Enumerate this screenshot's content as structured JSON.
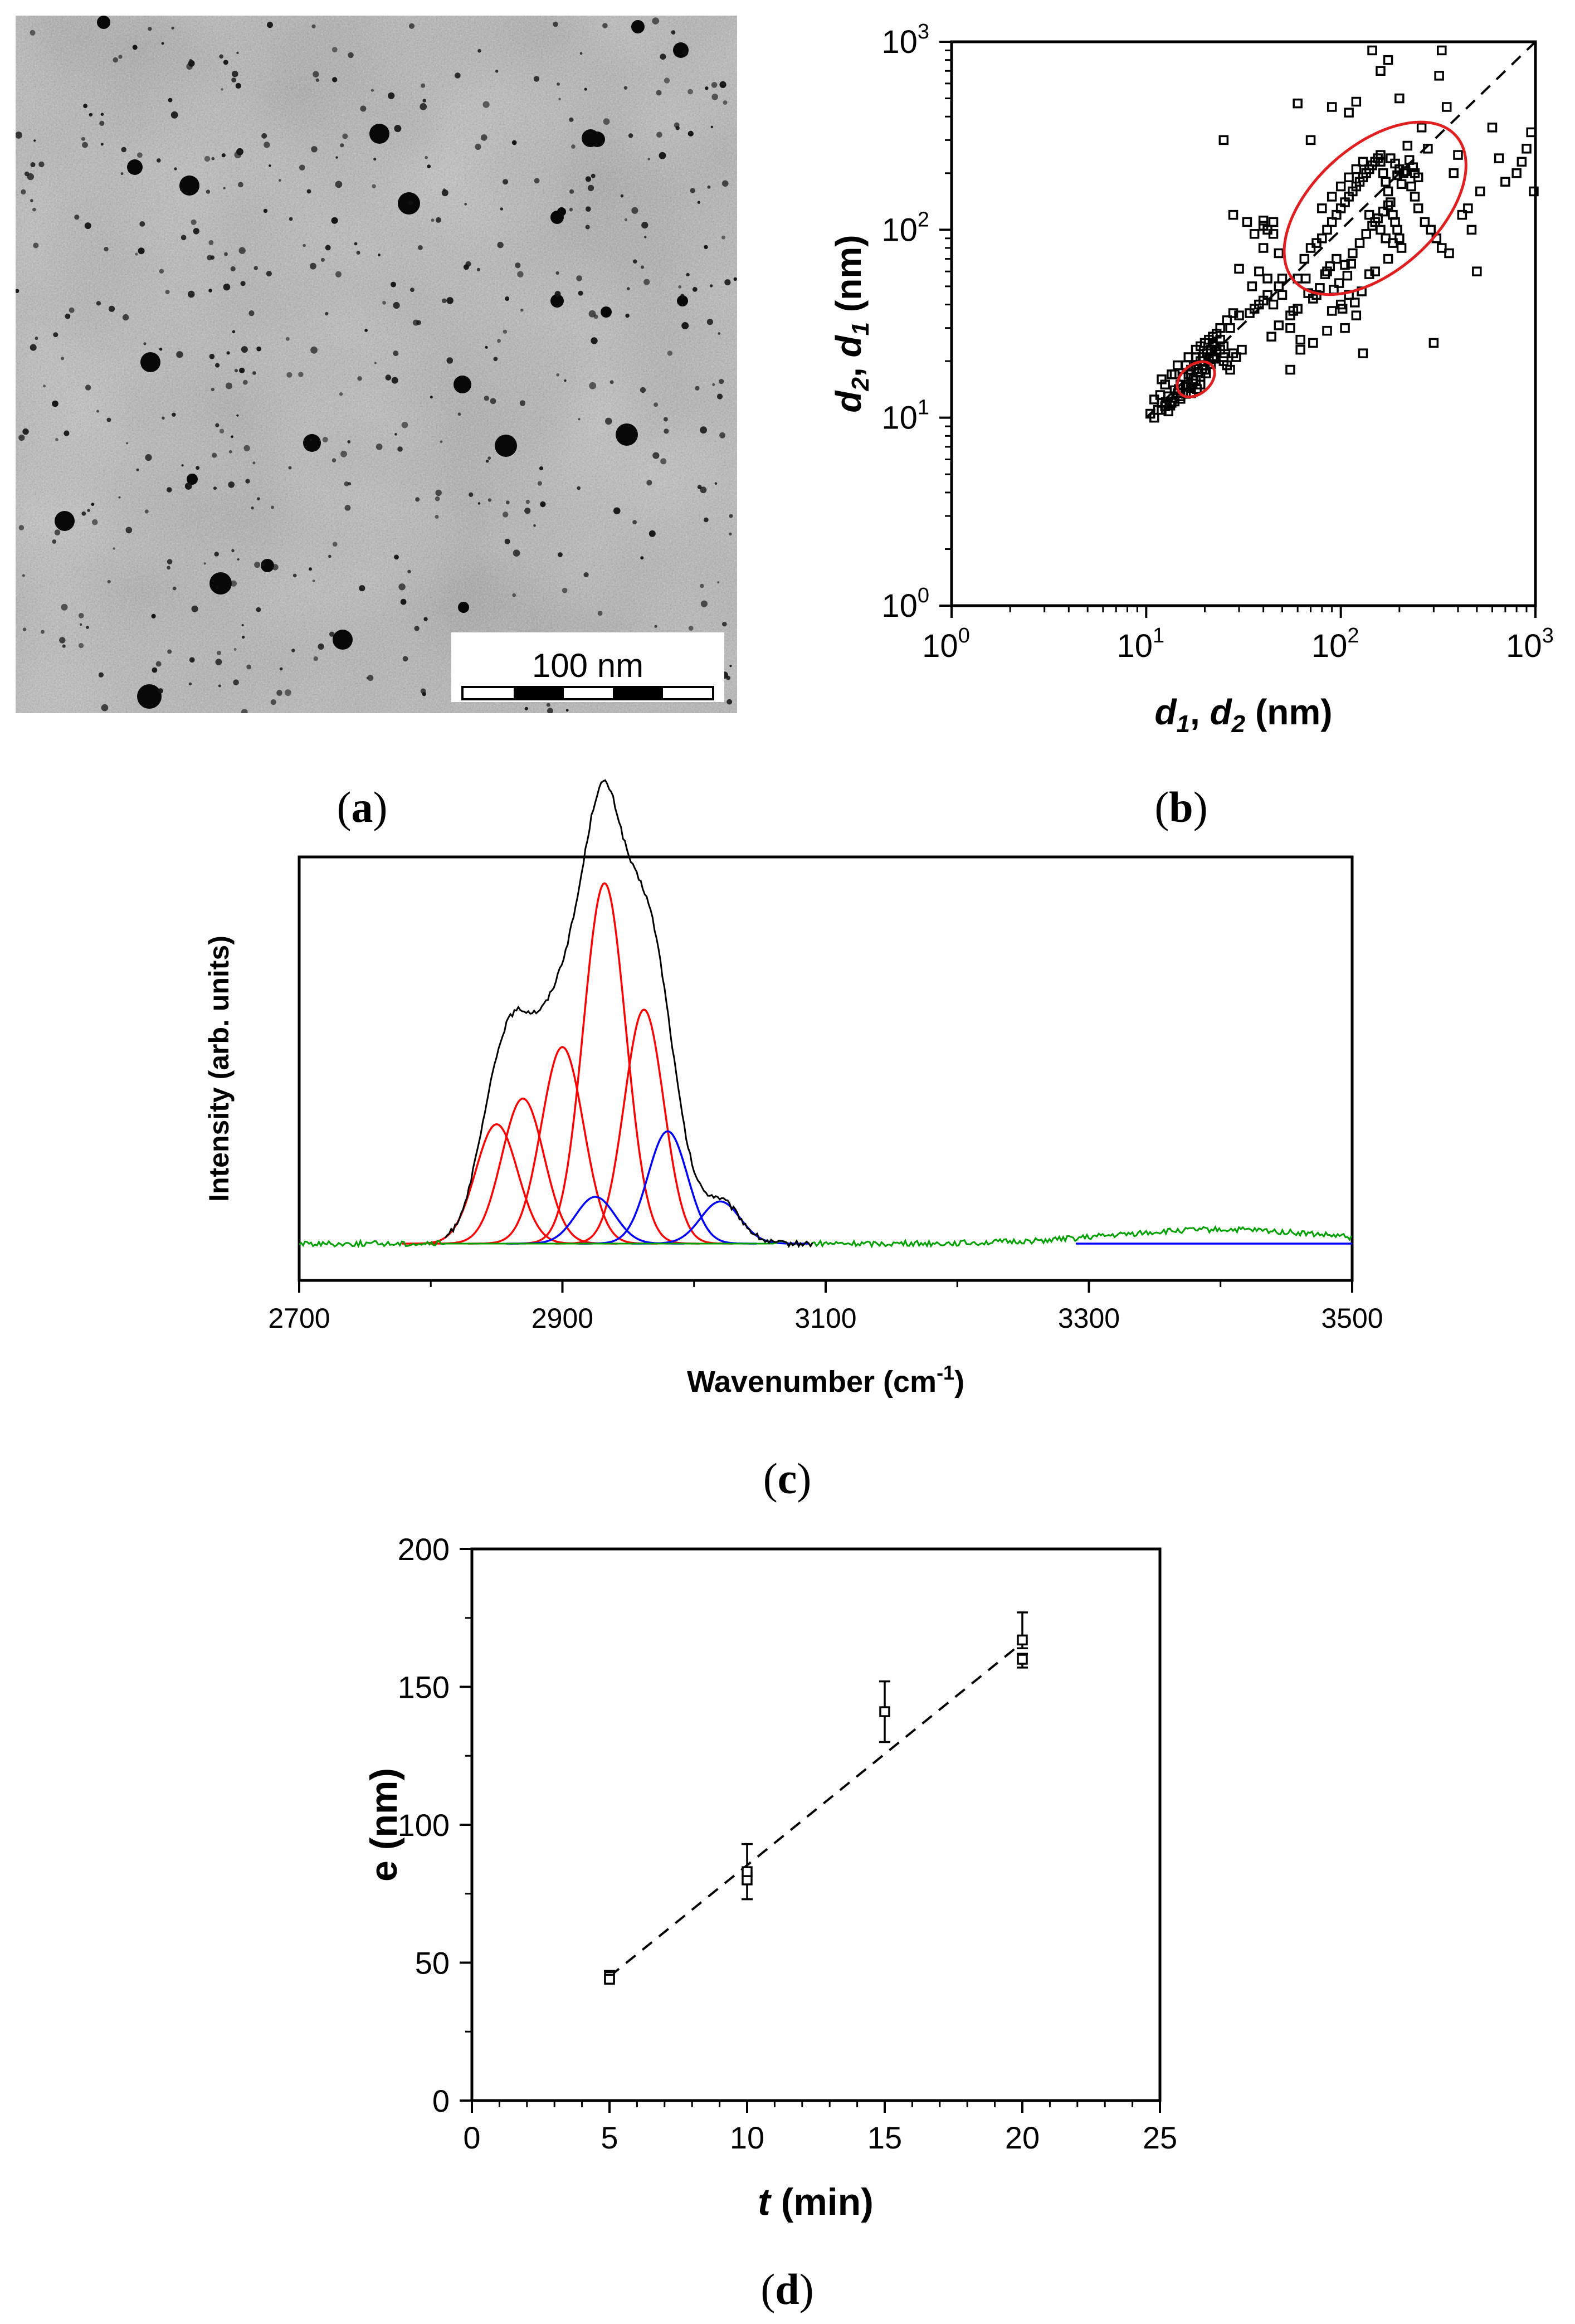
{
  "panels": {
    "a": {
      "label_open": "(",
      "label_letter": "a",
      "label_close": ")"
    },
    "b": {
      "label_open": "(",
      "label_letter": "b",
      "label_close": ")"
    },
    "c": {
      "label_open": "(",
      "label_letter": "c",
      "label_close": ")"
    },
    "d": {
      "label_open": "(",
      "label_letter": "d",
      "label_close": ")"
    }
  },
  "micrograph": {
    "scale_bar_text": "100 nm"
  },
  "chart_data": [
    {
      "id": "b",
      "type": "scatter",
      "scale": "log-log",
      "xlabel_parts": [
        "d",
        "1",
        ", ",
        "d",
        "2",
        " (nm)"
      ],
      "ylabel_parts": [
        "d",
        "2",
        ", ",
        "d",
        "1",
        " (nm)"
      ],
      "xlim": [
        1,
        1000
      ],
      "ylim": [
        1,
        1000
      ],
      "ticks": [
        1,
        10,
        100,
        1000
      ],
      "tick_labels": [
        [
          "10",
          "0"
        ],
        [
          "10",
          "1"
        ],
        [
          "10",
          "2"
        ],
        [
          "10",
          "3"
        ]
      ],
      "reference_line": "y = x (dashed)",
      "ellipses": [
        {
          "center": [
            18,
            16
          ],
          "color": "#e02020"
        },
        {
          "center": [
            150,
            130
          ],
          "color": "#e02020"
        }
      ],
      "points": [
        [
          10.5,
          10.5
        ],
        [
          11,
          10
        ],
        [
          11.5,
          11
        ],
        [
          12,
          12
        ],
        [
          12.5,
          11.5
        ],
        [
          13,
          13
        ],
        [
          13.5,
          12
        ],
        [
          14,
          14
        ],
        [
          14.5,
          13.5
        ],
        [
          15,
          15
        ],
        [
          11.8,
          13.2
        ],
        [
          12.6,
          12.1
        ],
        [
          13.3,
          11.6
        ],
        [
          14.7,
          14.2
        ],
        [
          15.5,
          16.5
        ],
        [
          16,
          15
        ],
        [
          16.5,
          17
        ],
        [
          17,
          18
        ],
        [
          17.5,
          16
        ],
        [
          18,
          19
        ],
        [
          18.5,
          17.5
        ],
        [
          19,
          20
        ],
        [
          19.5,
          21
        ],
        [
          20,
          19
        ],
        [
          20.5,
          22
        ],
        [
          21,
          20.5
        ],
        [
          21.5,
          23
        ],
        [
          22,
          21
        ],
        [
          22.5,
          24
        ],
        [
          23,
          22.5
        ],
        [
          16.2,
          14.6
        ],
        [
          17.3,
          15.2
        ],
        [
          18.2,
          14.2
        ],
        [
          19.4,
          18.2
        ],
        [
          20.3,
          17.2
        ],
        [
          21.5,
          19.3
        ],
        [
          22.3,
          20.6
        ],
        [
          24,
          23
        ],
        [
          25,
          24
        ],
        [
          25,
          21
        ],
        [
          12.5,
          15
        ],
        [
          14,
          17
        ],
        [
          15,
          13
        ],
        [
          17,
          13.5
        ],
        [
          19,
          15
        ],
        [
          22,
          25
        ],
        [
          24,
          26
        ],
        [
          27,
          30
        ],
        [
          28,
          22
        ],
        [
          30,
          35
        ],
        [
          34,
          36
        ],
        [
          36,
          38
        ],
        [
          38,
          40
        ],
        [
          40,
          42
        ],
        [
          42,
          45
        ],
        [
          45,
          40
        ],
        [
          48,
          50
        ],
        [
          50,
          55
        ],
        [
          55,
          35
        ],
        [
          60,
          38
        ],
        [
          35,
          50
        ],
        [
          38,
          60
        ],
        [
          40,
          80
        ],
        [
          42,
          100
        ],
        [
          45,
          110
        ],
        [
          40,
          112
        ],
        [
          45,
          95
        ],
        [
          40,
          105
        ],
        [
          48,
          75
        ],
        [
          55,
          30
        ],
        [
          60,
          55
        ],
        [
          65,
          70
        ],
        [
          70,
          80
        ],
        [
          75,
          85
        ],
        [
          80,
          90
        ],
        [
          85,
          100
        ],
        [
          90,
          110
        ],
        [
          95,
          120
        ],
        [
          100,
          130
        ],
        [
          105,
          140
        ],
        [
          110,
          150
        ],
        [
          115,
          160
        ],
        [
          120,
          170
        ],
        [
          125,
          180
        ],
        [
          130,
          190
        ],
        [
          135,
          200
        ],
        [
          140,
          210
        ],
        [
          145,
          220
        ],
        [
          150,
          230
        ],
        [
          155,
          240
        ],
        [
          160,
          250
        ],
        [
          165,
          200
        ],
        [
          170,
          180
        ],
        [
          175,
          160
        ],
        [
          180,
          140
        ],
        [
          185,
          120
        ],
        [
          190,
          110
        ],
        [
          195,
          100
        ],
        [
          200,
          90
        ],
        [
          205,
          80
        ],
        [
          80,
          130
        ],
        [
          90,
          150
        ],
        [
          100,
          170
        ],
        [
          110,
          190
        ],
        [
          120,
          210
        ],
        [
          130,
          230
        ],
        [
          140,
          120
        ],
        [
          150,
          110
        ],
        [
          160,
          100
        ],
        [
          170,
          90
        ],
        [
          85,
          60
        ],
        [
          95,
          70
        ],
        [
          105,
          65
        ],
        [
          115,
          75
        ],
        [
          125,
          85
        ],
        [
          135,
          95
        ],
        [
          145,
          105
        ],
        [
          155,
          115
        ],
        [
          165,
          125
        ],
        [
          175,
          135
        ],
        [
          60,
          470
        ],
        [
          70,
          300
        ],
        [
          90,
          450
        ],
        [
          110,
          420
        ],
        [
          120,
          480
        ],
        [
          145,
          900
        ],
        [
          160,
          700
        ],
        [
          175,
          800
        ],
        [
          200,
          500
        ],
        [
          220,
          280
        ],
        [
          260,
          350
        ],
        [
          280,
          270
        ],
        [
          320,
          660
        ],
        [
          330,
          900
        ],
        [
          350,
          450
        ],
        [
          380,
          200
        ],
        [
          400,
          250
        ],
        [
          420,
          120
        ],
        [
          450,
          130
        ],
        [
          470,
          100
        ],
        [
          500,
          60
        ],
        [
          520,
          160
        ],
        [
          600,
          350
        ],
        [
          650,
          240
        ],
        [
          700,
          180
        ],
        [
          800,
          200
        ],
        [
          850,
          230
        ],
        [
          900,
          270
        ],
        [
          950,
          330
        ],
        [
          980,
          160
        ],
        [
          30,
          62
        ],
        [
          57,
          37
        ],
        [
          90,
          37
        ],
        [
          100,
          40
        ],
        [
          110,
          45
        ],
        [
          120,
          35
        ],
        [
          130,
          22
        ],
        [
          160,
          230
        ],
        [
          180,
          240
        ],
        [
          200,
          210
        ],
        [
          210,
          200
        ],
        [
          230,
          170
        ],
        [
          240,
          150
        ],
        [
          250,
          130
        ],
        [
          270,
          110
        ],
        [
          290,
          100
        ],
        [
          300,
          25
        ],
        [
          310,
          90
        ],
        [
          330,
          80
        ],
        [
          360,
          75
        ],
        [
          25,
          300
        ],
        [
          55,
          18
        ],
        [
          62,
          26
        ],
        [
          28,
          120
        ],
        [
          33,
          110
        ],
        [
          36,
          95
        ],
        [
          42,
          55
        ],
        [
          50,
          45
        ],
        [
          75,
          45
        ],
        [
          102,
          38
        ],
        [
          66,
          55
        ],
        [
          68,
          46
        ],
        [
          72,
          43
        ],
        [
          78,
          49
        ],
        [
          83,
          58
        ],
        [
          88,
          64
        ],
        [
          92,
          48
        ],
        [
          98,
          52
        ],
        [
          108,
          57
        ],
        [
          113,
          66
        ],
        [
          190,
          225
        ],
        [
          195,
          195
        ],
        [
          205,
          175
        ],
        [
          215,
          205
        ],
        [
          225,
          235
        ],
        [
          240,
          200
        ],
        [
          250,
          190
        ],
        [
          235,
          215
        ],
        [
          185,
          85
        ],
        [
          175,
          70
        ],
        [
          150,
          60
        ],
        [
          140,
          58
        ],
        [
          128,
          47
        ],
        [
          118,
          41
        ],
        [
          105,
          30
        ],
        [
          85,
          29
        ],
        [
          72,
          25
        ],
        [
          62,
          23
        ],
        [
          48,
          31
        ],
        [
          44,
          27
        ],
        [
          16,
          19
        ],
        [
          18,
          21
        ],
        [
          19,
          24
        ],
        [
          21,
          26
        ],
        [
          23,
          28
        ],
        [
          25,
          20
        ],
        [
          26,
          19
        ],
        [
          27,
          18
        ],
        [
          29,
          21
        ],
        [
          31,
          23
        ],
        [
          12,
          16
        ],
        [
          13.5,
          17
        ],
        [
          14.5,
          19
        ],
        [
          16.5,
          21
        ],
        [
          18,
          23
        ],
        [
          20,
          25
        ],
        [
          22,
          27
        ],
        [
          24,
          30
        ],
        [
          26,
          33
        ],
        [
          28,
          36
        ],
        [
          11,
          12.5
        ],
        [
          12,
          11
        ],
        [
          13,
          10.8
        ],
        [
          14,
          12.2
        ],
        [
          15,
          12.6
        ],
        [
          16,
          13.4
        ],
        [
          17,
          14.4
        ],
        [
          18,
          15.8
        ],
        [
          19,
          16.5
        ],
        [
          20,
          18
        ]
      ]
    },
    {
      "id": "c",
      "type": "line",
      "xlabel": "Wavenumber (cm",
      "xlabel_sup": "-1",
      "xlabel_close": ")",
      "ylabel": "Intensity (arb. units)",
      "xlim": [
        2700,
        3500
      ],
      "xticks": [
        2700,
        2900,
        3100,
        3300,
        3500
      ],
      "series": [
        {
          "name": "measured spectrum",
          "color": "#000000"
        },
        {
          "name": "baseline",
          "color": "#00a000"
        }
      ],
      "red_peaks": [
        {
          "center": 2850,
          "height": 0.255,
          "width": 16
        },
        {
          "center": 2870,
          "height": 0.31,
          "width": 16
        },
        {
          "center": 2900,
          "height": 0.42,
          "width": 16
        },
        {
          "center": 2932,
          "height": 0.77,
          "width": 16
        },
        {
          "center": 2962,
          "height": 0.5,
          "width": 15
        }
      ],
      "blue_peaks": [
        {
          "center": 2925,
          "height": 0.1,
          "width": 15
        },
        {
          "center": 2980,
          "height": 0.24,
          "width": 15
        },
        {
          "center": 3020,
          "height": 0.09,
          "width": 15
        }
      ],
      "broad_band": {
        "center": 3400,
        "height": 0.03,
        "width": 80
      }
    },
    {
      "id": "d",
      "type": "scatter",
      "xlabel": "t",
      "xlabel_unit": " (min)",
      "ylabel": "e (nm)",
      "xlim": [
        0,
        25
      ],
      "ylim": [
        0,
        200
      ],
      "xticks": [
        0,
        5,
        10,
        15,
        20,
        25
      ],
      "yticks": [
        0,
        50,
        100,
        150,
        200
      ],
      "points": [
        {
          "x": 5,
          "y": 45,
          "err_low": 43,
          "err_high": 47
        },
        {
          "x": 5,
          "y": 44
        },
        {
          "x": 10,
          "y": 80,
          "err_low": 73,
          "err_high": 93
        },
        {
          "x": 10,
          "y": 83
        },
        {
          "x": 15,
          "y": 141,
          "err_low": 130,
          "err_high": 152
        },
        {
          "x": 20,
          "y": 160,
          "err_low": 157,
          "err_high": 162
        },
        {
          "x": 20,
          "y": 167,
          "err_low": 164,
          "err_high": 177
        }
      ],
      "fit_line": {
        "x": [
          5,
          20
        ],
        "y": [
          45,
          166
        ],
        "style": "dashed"
      }
    }
  ]
}
